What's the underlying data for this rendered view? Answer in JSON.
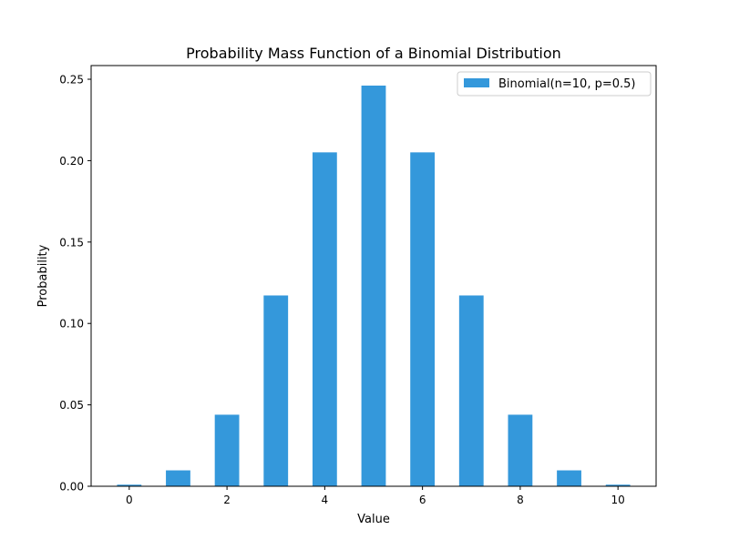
{
  "chart_data": {
    "type": "bar",
    "title": "Probability Mass Function of a Binomial Distribution",
    "xlabel": "Value",
    "ylabel": "Probability",
    "x": [
      0,
      1,
      2,
      3,
      4,
      5,
      6,
      7,
      8,
      9,
      10
    ],
    "series": [
      {
        "name": "Binomial(n=10, p=0.5)",
        "color": "#3498db",
        "values": [
          0.000977,
          0.009766,
          0.043945,
          0.117188,
          0.205078,
          0.246094,
          0.205078,
          0.117188,
          0.043945,
          0.009766,
          0.000977
        ]
      }
    ],
    "bar_width": 0.5,
    "xlim": [
      -0.78,
      10.78
    ],
    "ylim": [
      0,
      0.2584
    ],
    "xticks": [
      0,
      2,
      4,
      6,
      8,
      10
    ],
    "xtick_labels": [
      "0",
      "2",
      "4",
      "6",
      "8",
      "10"
    ],
    "yticks": [
      0.0,
      0.05,
      0.1,
      0.15,
      0.2,
      0.25
    ],
    "ytick_labels": [
      "0.00",
      "0.05",
      "0.10",
      "0.15",
      "0.20",
      "0.25"
    ],
    "grid": false,
    "legend": {
      "position": "top-right",
      "entries": [
        "Binomial(n=10, p=0.5)"
      ]
    }
  }
}
